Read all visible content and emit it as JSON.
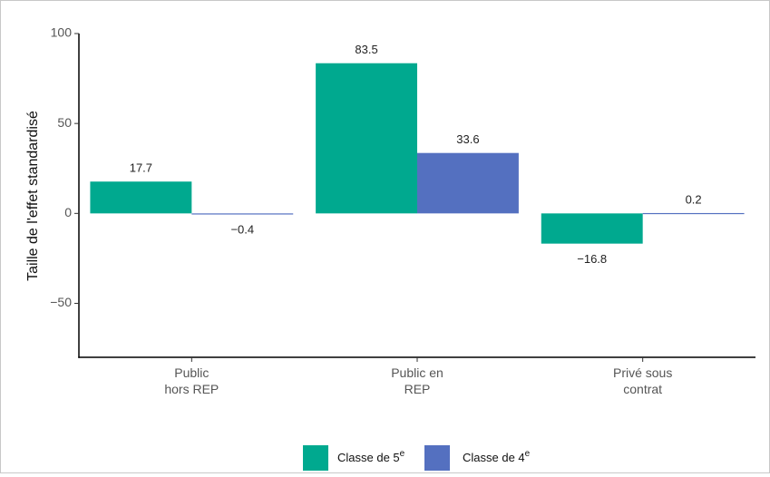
{
  "chart_data": {
    "type": "bar",
    "ylabel": "Taille de l'effet standardisé",
    "ylim": [
      -80,
      100
    ],
    "yticks": [
      -50,
      0,
      50,
      100
    ],
    "ytick_labels": [
      "−50",
      "0",
      "50",
      "100"
    ],
    "grid": false,
    "legend_position": "bottom",
    "categories": [
      {
        "line1": "Public",
        "line2": "hors REP"
      },
      {
        "line1": "Public en",
        "line2": "REP"
      },
      {
        "line1": "Privé sous",
        "line2": "contrat"
      }
    ],
    "series": [
      {
        "name": "Classe de 5",
        "sup": "e",
        "color": "#00a98f",
        "values": [
          17.7,
          83.5,
          -16.8
        ],
        "labels": [
          "17.7",
          "83.5",
          "−16.8"
        ]
      },
      {
        "name": "Classe de 4",
        "sup": "e",
        "color": "#5470c0",
        "values": [
          -0.4,
          33.6,
          0.2
        ],
        "labels": [
          "−0.4",
          "33.6",
          "0.2"
        ]
      }
    ]
  }
}
